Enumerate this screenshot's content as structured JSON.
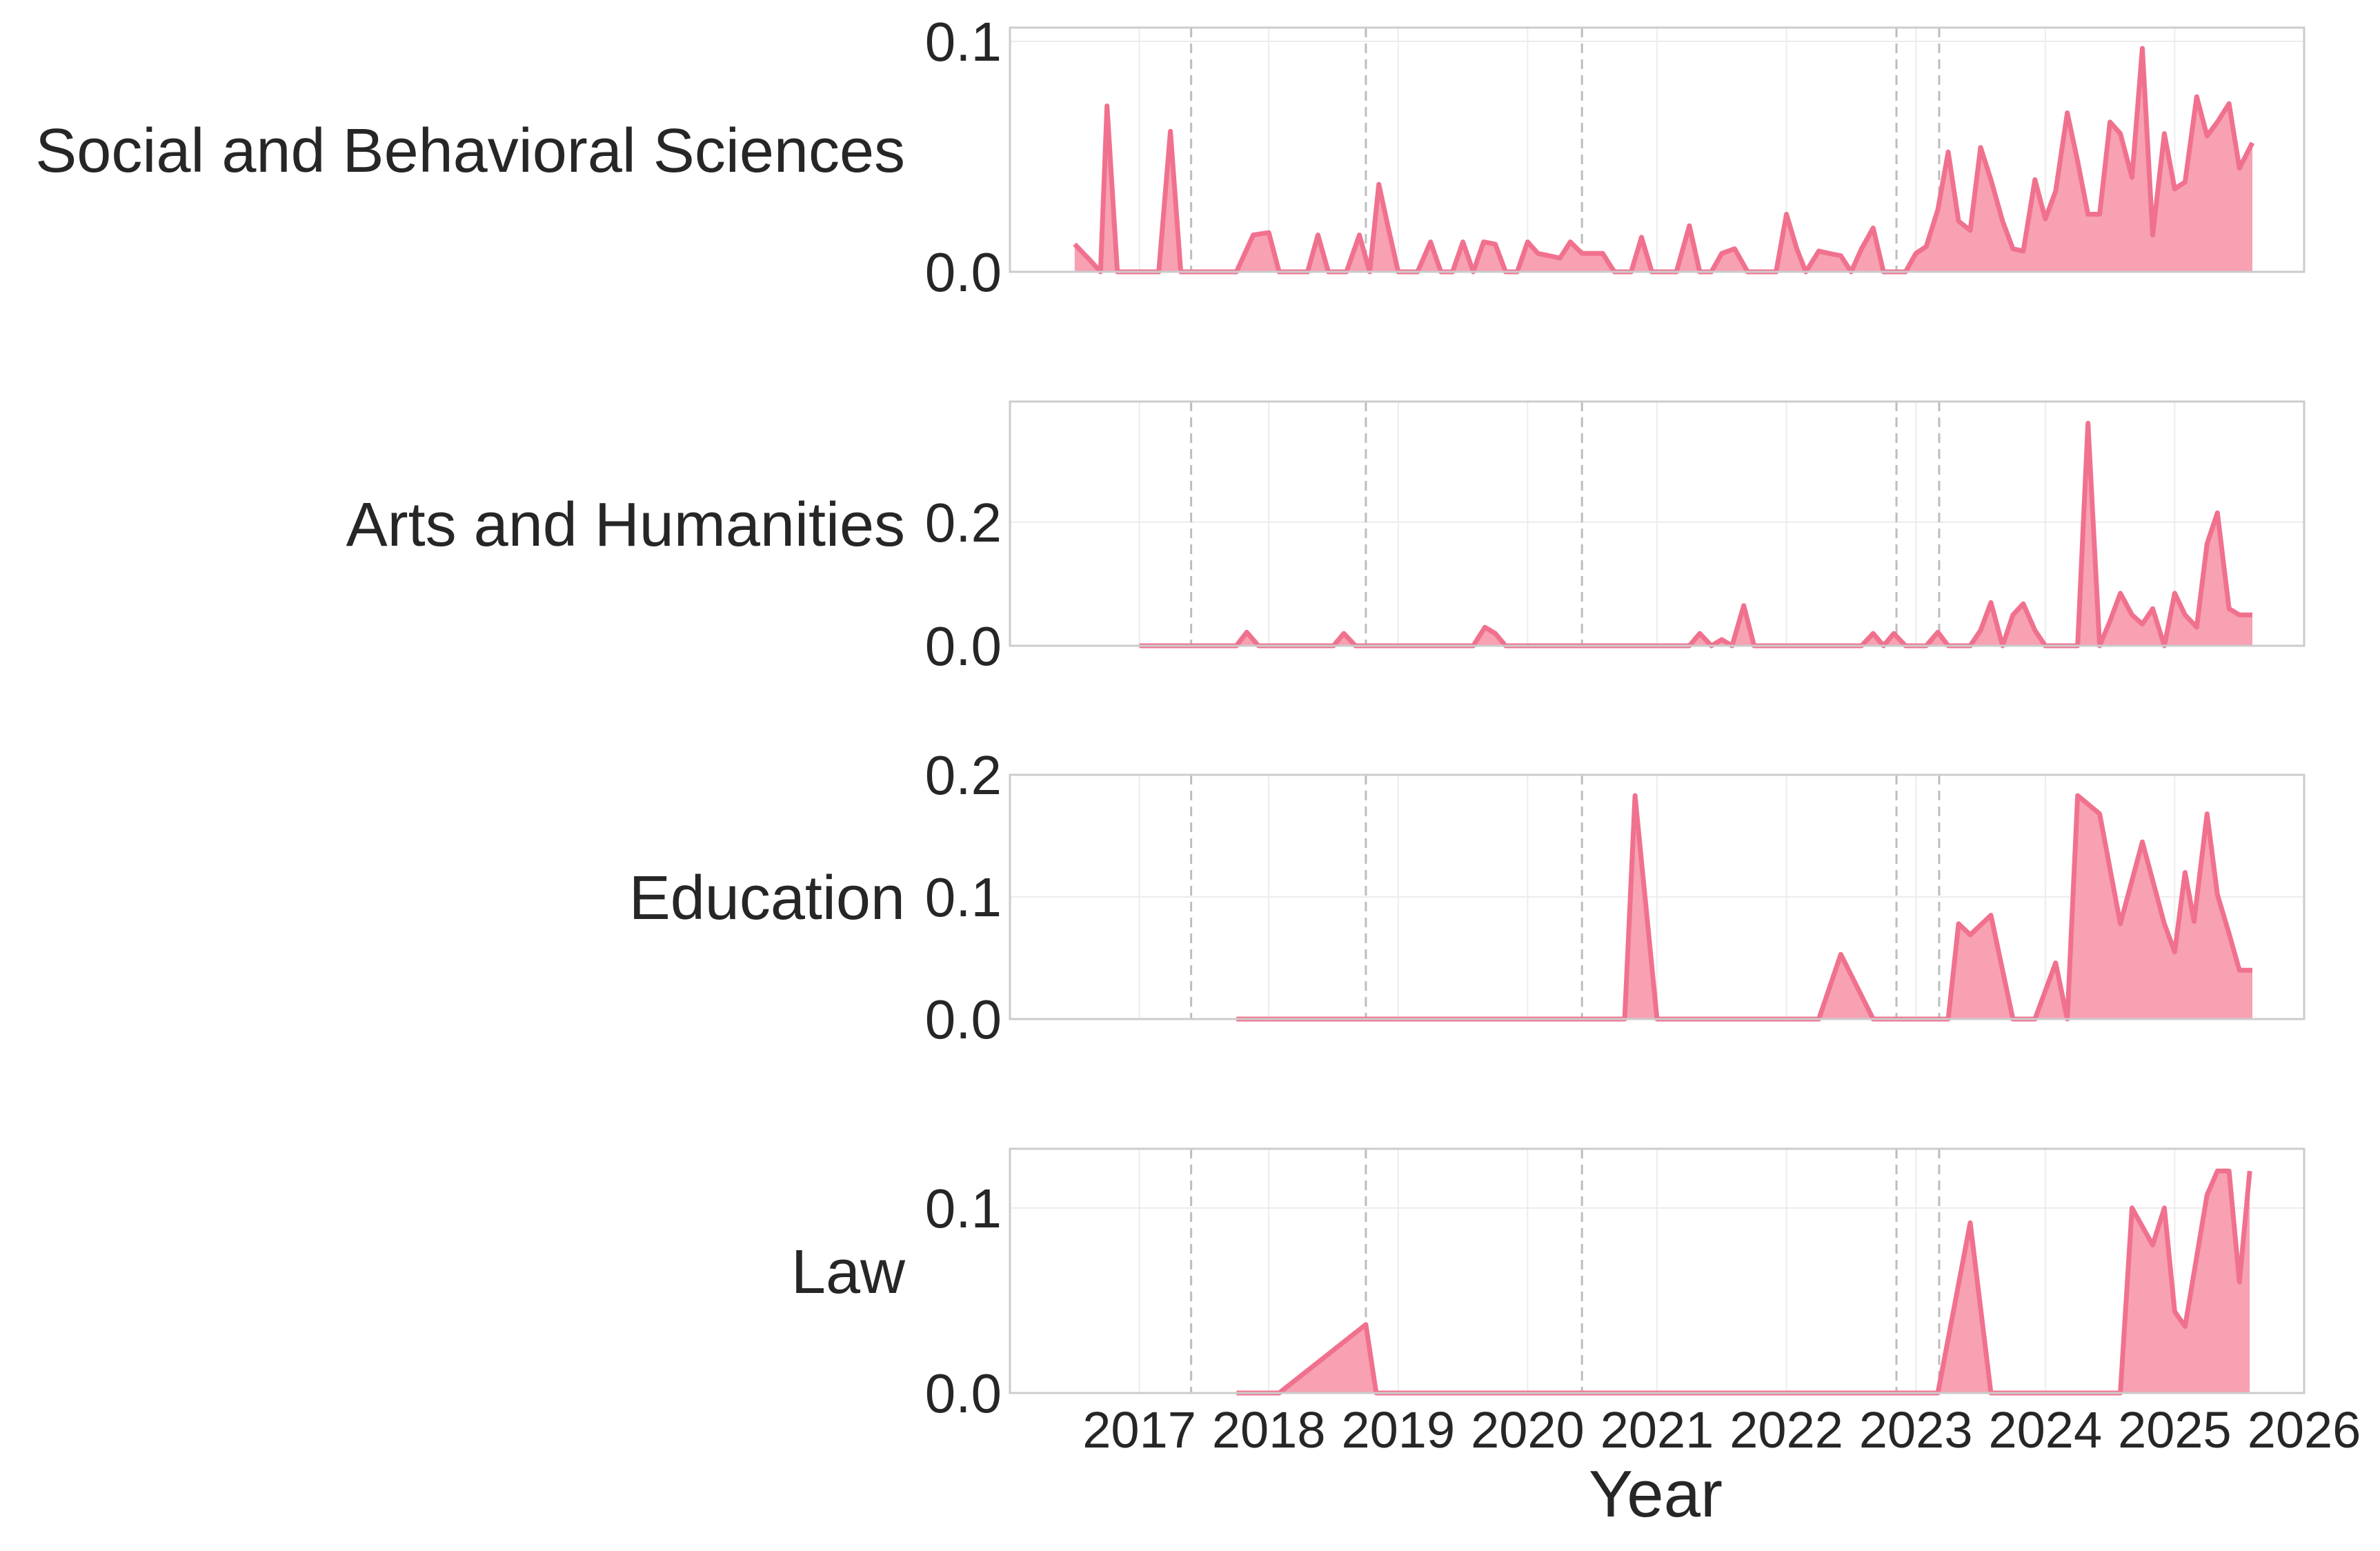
{
  "chart_data": {
    "type": "area",
    "xlabel": "Year",
    "x_ticks": [
      "2017",
      "2018",
      "2019",
      "2020",
      "2021",
      "2022",
      "2023",
      "2024",
      "2025",
      "2026"
    ],
    "xlim": [
      2016.0,
      2026.0
    ],
    "vlines": [
      2017.4,
      2018.75,
      2020.42,
      2022.85,
      2023.18
    ],
    "grid": true,
    "colors": {
      "fill": "#F7A1B3",
      "line": "#F0718E",
      "vline": "#bdbdbd",
      "grid": "#ececec",
      "frame": "#cccccc"
    },
    "panels": [
      {
        "label": "Social and Behavioral Sciences",
        "ylim": [
          0,
          0.106
        ],
        "yticks": [
          0.0,
          0.1
        ],
        "ytick_labels": [
          "0.0",
          "0.1"
        ],
        "points": [
          [
            2016.5,
            0.012
          ],
          [
            2016.62,
            0.005
          ],
          [
            2016.7,
            0.0
          ],
          [
            2016.75,
            0.072
          ],
          [
            2016.83,
            0.0
          ],
          [
            2017.05,
            0.0
          ],
          [
            2017.15,
            0.0
          ],
          [
            2017.24,
            0.061
          ],
          [
            2017.32,
            0.0
          ],
          [
            2017.5,
            0.0
          ],
          [
            2017.75,
            0.0
          ],
          [
            2017.88,
            0.016
          ],
          [
            2018.0,
            0.017
          ],
          [
            2018.08,
            0.0
          ],
          [
            2018.3,
            0.0
          ],
          [
            2018.38,
            0.016
          ],
          [
            2018.46,
            0.0
          ],
          [
            2018.6,
            0.0
          ],
          [
            2018.7,
            0.016
          ],
          [
            2018.78,
            0.0
          ],
          [
            2018.85,
            0.038
          ],
          [
            2018.92,
            0.02
          ],
          [
            2019.0,
            0.0
          ],
          [
            2019.15,
            0.0
          ],
          [
            2019.25,
            0.013
          ],
          [
            2019.33,
            0.0
          ],
          [
            2019.42,
            0.0
          ],
          [
            2019.5,
            0.013
          ],
          [
            2019.58,
            0.0
          ],
          [
            2019.66,
            0.013
          ],
          [
            2019.75,
            0.012
          ],
          [
            2019.83,
            0.0
          ],
          [
            2019.92,
            0.0
          ],
          [
            2020.0,
            0.013
          ],
          [
            2020.08,
            0.008
          ],
          [
            2020.25,
            0.006
          ],
          [
            2020.33,
            0.013
          ],
          [
            2020.42,
            0.008
          ],
          [
            2020.58,
            0.008
          ],
          [
            2020.67,
            0.0
          ],
          [
            2020.8,
            0.0
          ],
          [
            2020.88,
            0.015
          ],
          [
            2020.96,
            0.0
          ],
          [
            2021.15,
            0.0
          ],
          [
            2021.25,
            0.02
          ],
          [
            2021.33,
            0.0
          ],
          [
            2021.42,
            0.0
          ],
          [
            2021.5,
            0.008
          ],
          [
            2021.6,
            0.01
          ],
          [
            2021.7,
            0.0
          ],
          [
            2021.92,
            0.0
          ],
          [
            2022.0,
            0.025
          ],
          [
            2022.08,
            0.01
          ],
          [
            2022.15,
            0.0
          ],
          [
            2022.25,
            0.009
          ],
          [
            2022.33,
            0.008
          ],
          [
            2022.42,
            0.007
          ],
          [
            2022.5,
            0.0
          ],
          [
            2022.58,
            0.01
          ],
          [
            2022.67,
            0.019
          ],
          [
            2022.75,
            0.0
          ],
          [
            2022.92,
            0.0
          ],
          [
            2023.0,
            0.008
          ],
          [
            2023.08,
            0.011
          ],
          [
            2023.17,
            0.027
          ],
          [
            2023.25,
            0.052
          ],
          [
            2023.33,
            0.022
          ],
          [
            2023.42,
            0.018
          ],
          [
            2023.5,
            0.054
          ],
          [
            2023.58,
            0.04
          ],
          [
            2023.67,
            0.022
          ],
          [
            2023.75,
            0.01
          ],
          [
            2023.83,
            0.009
          ],
          [
            2023.92,
            0.04
          ],
          [
            2024.0,
            0.023
          ],
          [
            2024.08,
            0.035
          ],
          [
            2024.17,
            0.069
          ],
          [
            2024.25,
            0.048
          ],
          [
            2024.33,
            0.025
          ],
          [
            2024.42,
            0.025
          ],
          [
            2024.5,
            0.065
          ],
          [
            2024.58,
            0.06
          ],
          [
            2024.67,
            0.041
          ],
          [
            2024.75,
            0.097
          ],
          [
            2024.83,
            0.016
          ],
          [
            2024.92,
            0.06
          ],
          [
            2025.0,
            0.036
          ],
          [
            2025.08,
            0.039
          ],
          [
            2025.17,
            0.076
          ],
          [
            2025.25,
            0.059
          ],
          [
            2025.33,
            0.065
          ],
          [
            2025.42,
            0.073
          ],
          [
            2025.5,
            0.045
          ],
          [
            2025.6,
            0.056
          ]
        ]
      },
      {
        "label": "Arts and Humanities",
        "ylim": [
          0,
          0.395
        ],
        "yticks": [
          0.0,
          0.2
        ],
        "ytick_labels": [
          "0.0",
          "0.2"
        ],
        "points": [
          [
            2017.0,
            0.0
          ],
          [
            2017.5,
            0.0
          ],
          [
            2017.75,
            0.0
          ],
          [
            2017.83,
            0.022
          ],
          [
            2017.92,
            0.0
          ],
          [
            2018.5,
            0.0
          ],
          [
            2018.58,
            0.02
          ],
          [
            2018.67,
            0.0
          ],
          [
            2019.58,
            0.0
          ],
          [
            2019.67,
            0.03
          ],
          [
            2019.75,
            0.02
          ],
          [
            2019.83,
            0.0
          ],
          [
            2020.5,
            0.0
          ],
          [
            2021.25,
            0.0
          ],
          [
            2021.33,
            0.02
          ],
          [
            2021.42,
            0.0
          ],
          [
            2021.5,
            0.01
          ],
          [
            2021.58,
            0.0
          ],
          [
            2021.67,
            0.065
          ],
          [
            2021.75,
            0.0
          ],
          [
            2022.58,
            0.0
          ],
          [
            2022.67,
            0.02
          ],
          [
            2022.75,
            0.0
          ],
          [
            2022.83,
            0.02
          ],
          [
            2022.92,
            0.0
          ],
          [
            2023.08,
            0.0
          ],
          [
            2023.17,
            0.022
          ],
          [
            2023.25,
            0.0
          ],
          [
            2023.42,
            0.0
          ],
          [
            2023.5,
            0.025
          ],
          [
            2023.58,
            0.07
          ],
          [
            2023.67,
            0.0
          ],
          [
            2023.75,
            0.05
          ],
          [
            2023.83,
            0.068
          ],
          [
            2023.92,
            0.025
          ],
          [
            2024.0,
            0.0
          ],
          [
            2024.25,
            0.0
          ],
          [
            2024.33,
            0.36
          ],
          [
            2024.42,
            0.0
          ],
          [
            2024.5,
            0.04
          ],
          [
            2024.58,
            0.085
          ],
          [
            2024.67,
            0.05
          ],
          [
            2024.75,
            0.035
          ],
          [
            2024.83,
            0.06
          ],
          [
            2024.92,
            0.0
          ],
          [
            2025.0,
            0.085
          ],
          [
            2025.08,
            0.05
          ],
          [
            2025.17,
            0.03
          ],
          [
            2025.25,
            0.165
          ],
          [
            2025.33,
            0.215
          ],
          [
            2025.42,
            0.06
          ],
          [
            2025.5,
            0.05
          ],
          [
            2025.6,
            0.05
          ]
        ]
      },
      {
        "label": "Education",
        "ylim": [
          0,
          0.2
        ],
        "yticks": [
          0.0,
          0.1,
          0.2
        ],
        "ytick_labels": [
          "0.0",
          "0.1",
          "0.2"
        ],
        "points": [
          [
            2017.75,
            0.0
          ],
          [
            2018.5,
            0.0
          ],
          [
            2019.5,
            0.0
          ],
          [
            2020.33,
            0.0
          ],
          [
            2020.75,
            0.0
          ],
          [
            2020.83,
            0.183
          ],
          [
            2021.0,
            0.0
          ],
          [
            2021.5,
            0.0
          ],
          [
            2022.25,
            0.0
          ],
          [
            2022.42,
            0.053
          ],
          [
            2022.67,
            0.0
          ],
          [
            2023.0,
            0.0
          ],
          [
            2023.25,
            0.0
          ],
          [
            2023.33,
            0.078
          ],
          [
            2023.42,
            0.069
          ],
          [
            2023.58,
            0.085
          ],
          [
            2023.75,
            0.0
          ],
          [
            2023.92,
            0.0
          ],
          [
            2024.08,
            0.046
          ],
          [
            2024.17,
            0.0
          ],
          [
            2024.25,
            0.183
          ],
          [
            2024.42,
            0.168
          ],
          [
            2024.58,
            0.078
          ],
          [
            2024.75,
            0.145
          ],
          [
            2024.92,
            0.078
          ],
          [
            2025.0,
            0.055
          ],
          [
            2025.08,
            0.12
          ],
          [
            2025.15,
            0.08
          ],
          [
            2025.25,
            0.168
          ],
          [
            2025.33,
            0.102
          ],
          [
            2025.42,
            0.07
          ],
          [
            2025.5,
            0.04
          ],
          [
            2025.6,
            0.04
          ]
        ]
      },
      {
        "label": "Law",
        "ylim": [
          0,
          0.132
        ],
        "yticks": [
          0.0,
          0.1
        ],
        "ytick_labels": [
          "0.0",
          "0.1"
        ],
        "points": [
          [
            2017.75,
            0.0
          ],
          [
            2018.08,
            0.0
          ],
          [
            2018.75,
            0.037
          ],
          [
            2018.83,
            0.0
          ],
          [
            2019.5,
            0.0
          ],
          [
            2020.5,
            0.0
          ],
          [
            2021.5,
            0.0
          ],
          [
            2022.5,
            0.0
          ],
          [
            2023.17,
            0.0
          ],
          [
            2023.42,
            0.092
          ],
          [
            2023.58,
            0.0
          ],
          [
            2024.0,
            0.0
          ],
          [
            2024.58,
            0.0
          ],
          [
            2024.67,
            0.1
          ],
          [
            2024.83,
            0.08
          ],
          [
            2024.92,
            0.1
          ],
          [
            2025.0,
            0.044
          ],
          [
            2025.08,
            0.036
          ],
          [
            2025.25,
            0.107
          ],
          [
            2025.33,
            0.12
          ],
          [
            2025.42,
            0.12
          ],
          [
            2025.5,
            0.06
          ],
          [
            2025.58,
            0.12
          ]
        ]
      }
    ]
  }
}
